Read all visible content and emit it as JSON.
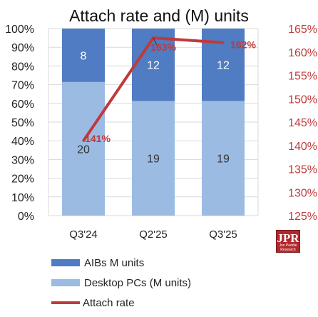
{
  "colors": {
    "aib": "#4f7cc2",
    "desktop": "#9bbbe3",
    "attach": "#c0393b",
    "grid": "#d9d9d9"
  },
  "logo": {
    "text": "JPR",
    "sub": "Jon Peddie Research"
  },
  "chart_data": {
    "type": "bar",
    "stacked": true,
    "title": "Attach rate and (M) units",
    "categories": [
      "Q3'24",
      "Q2'25",
      "Q3'25"
    ],
    "series": [
      {
        "name": "Desktop PCs (M units)",
        "values": [
          20,
          19,
          19
        ],
        "labels": [
          "20",
          "19",
          "19"
        ]
      },
      {
        "name": "AIBs M units",
        "values": [
          8,
          12,
          12
        ],
        "labels": [
          "8",
          "12",
          "12"
        ]
      }
    ],
    "line_series": {
      "name": "Attach rate",
      "axis": "right",
      "values": [
        141,
        163,
        162
      ],
      "labels": [
        "141%",
        "163%",
        "162%"
      ]
    },
    "y_left": {
      "ticks": [
        "0%",
        "10%",
        "20%",
        "30%",
        "40%",
        "50%",
        "60%",
        "70%",
        "80%",
        "90%",
        "100%"
      ],
      "ylim": [
        0,
        100
      ]
    },
    "y_right": {
      "ticks": [
        "125%",
        "130%",
        "135%",
        "140%",
        "145%",
        "150%",
        "155%",
        "160%",
        "165%"
      ],
      "ylim": [
        125,
        165
      ]
    },
    "grid": true,
    "legend_placement": "bottom-left",
    "legend": [
      "AIBs M units",
      "Desktop PCs (M units)",
      "Attach rate"
    ]
  }
}
